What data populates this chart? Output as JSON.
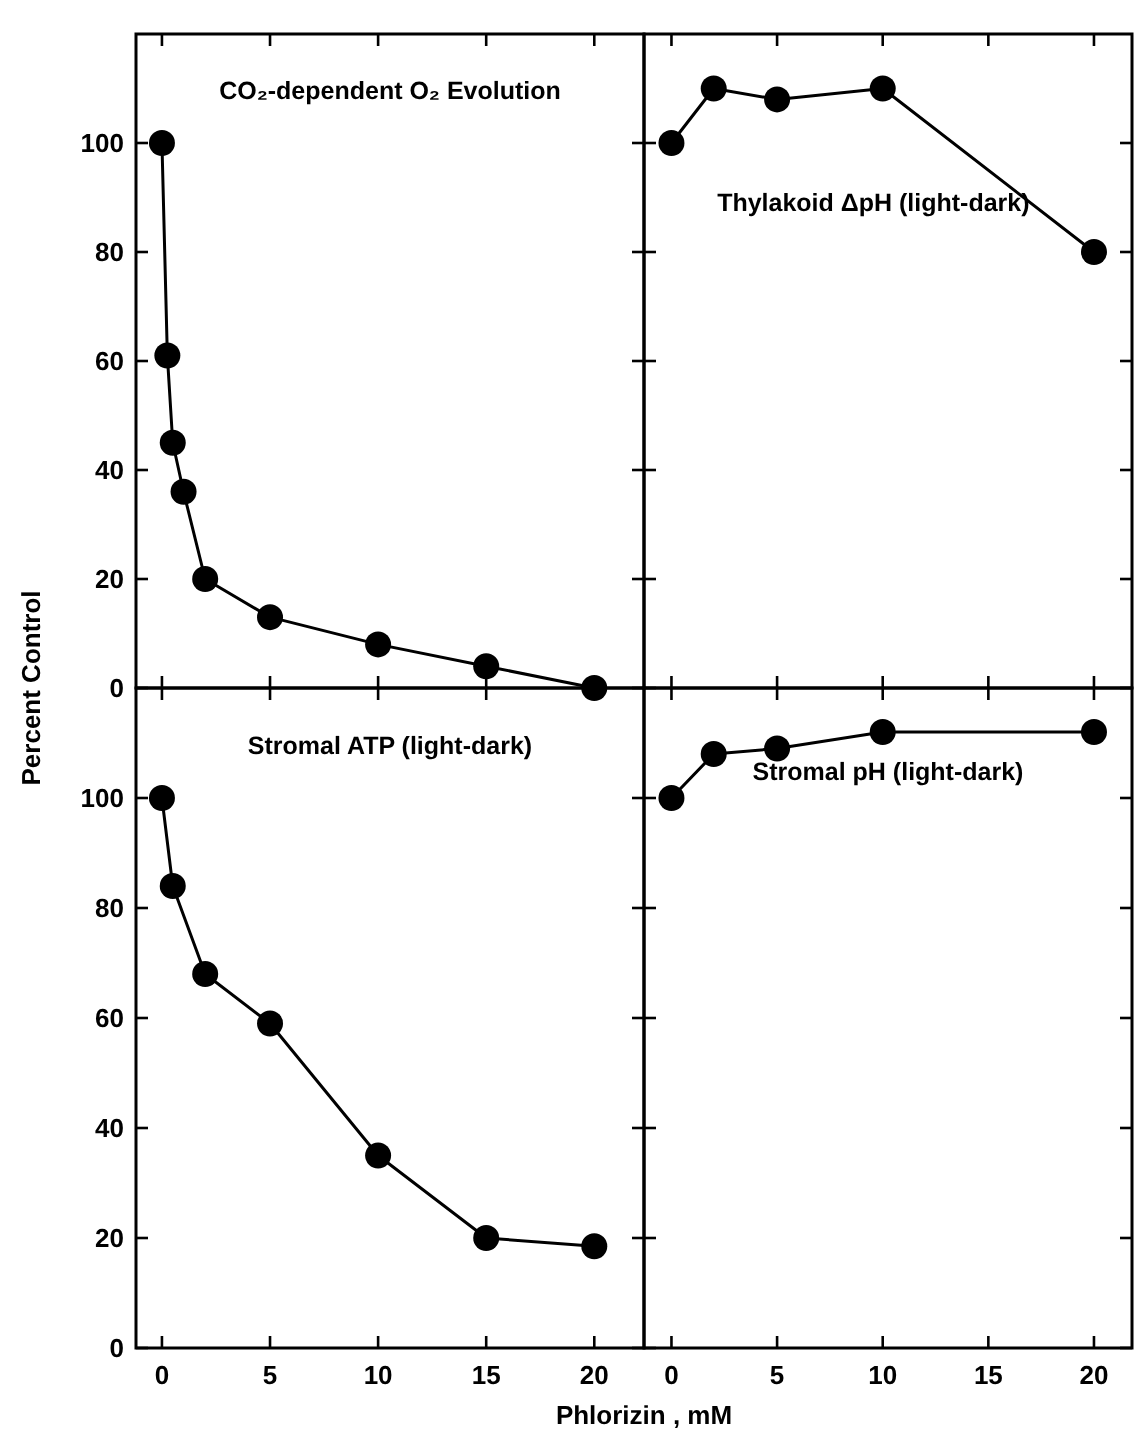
{
  "chart_data": [
    {
      "type": "line",
      "title": "CO₂-dependent O₂ Evolution",
      "ylabel": "Percent Control",
      "x": [
        0,
        0.25,
        0.5,
        1,
        2,
        5,
        10,
        15,
        20
      ],
      "xlim": [
        -1.2,
        22.3
      ],
      "xticks": [
        0,
        5,
        10,
        15,
        20
      ],
      "ylim": [
        0,
        120
      ],
      "yticks": [
        0,
        20,
        40,
        60,
        80,
        100
      ],
      "tick_labels": "y",
      "marker": "circle",
      "line_style": "solid",
      "series": [
        {
          "color": "#000000",
          "values": [
            100,
            61,
            45,
            36,
            20,
            13,
            8,
            4,
            0
          ]
        }
      ]
    },
    {
      "type": "line",
      "title": "Thylakoid ΔpH (light-dark)",
      "x": [
        0,
        2,
        5,
        10,
        20
      ],
      "xlim": [
        -1.3,
        21.8
      ],
      "xticks": [
        0,
        5,
        10,
        15,
        20
      ],
      "ylim": [
        0,
        120
      ],
      "yticks": [
        0,
        20,
        40,
        60,
        80,
        100
      ],
      "tick_labels": false,
      "marker": "circle",
      "line_style": "solid",
      "series": [
        {
          "color": "#000000",
          "values": [
            100,
            110,
            108,
            110,
            80
          ]
        }
      ]
    },
    {
      "type": "line",
      "title": "Stromal ATP (light-dark)",
      "xlabel": "Phlorizin , mM",
      "x": [
        0,
        0.5,
        2,
        5,
        10,
        15,
        20
      ],
      "xlim": [
        -1.2,
        22.3
      ],
      "xticks": [
        0,
        5,
        10,
        15,
        20
      ],
      "ylim": [
        0,
        120
      ],
      "yticks": [
        0,
        20,
        40,
        60,
        80,
        100
      ],
      "marker": "circle",
      "line_style": "solid",
      "series": [
        {
          "color": "#000000",
          "values": [
            100,
            84,
            68,
            59,
            35,
            20,
            18.5
          ]
        }
      ]
    },
    {
      "type": "line",
      "title": "Stromal pH (light-dark)",
      "x": [
        0,
        2,
        5,
        10,
        20
      ],
      "xlim": [
        -1.3,
        21.8
      ],
      "xticks": [
        0,
        5,
        10,
        15,
        20
      ],
      "ylim": [
        0,
        120
      ],
      "yticks": [
        0,
        20,
        40,
        60,
        80,
        100
      ],
      "tick_labels": "x",
      "marker": "circle",
      "line_style": "solid",
      "series": [
        {
          "color": "#000000",
          "values": [
            100,
            108,
            109,
            112,
            112
          ]
        }
      ]
    }
  ]
}
